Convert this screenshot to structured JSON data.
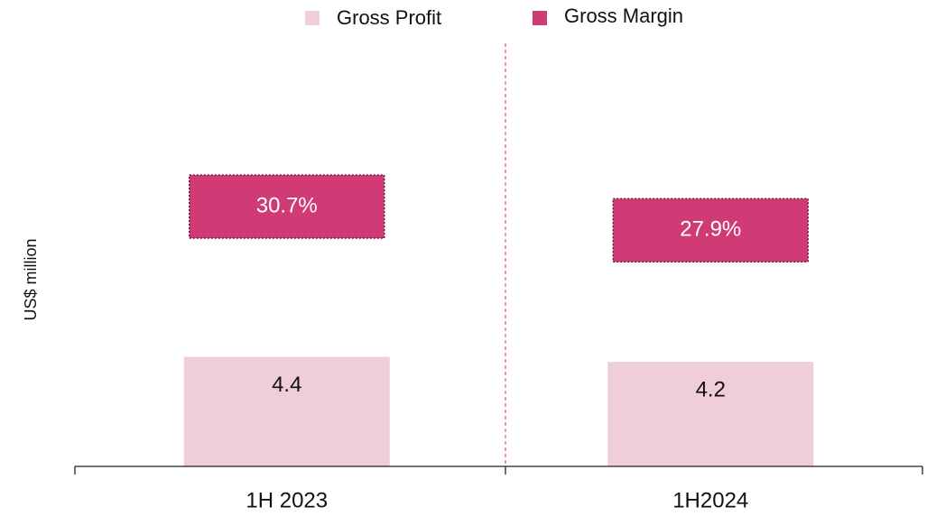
{
  "chart_data": {
    "type": "bar",
    "y_label": "US$ million",
    "categories": [
      "1H 2023",
      "1H2024"
    ],
    "series": [
      {
        "name": "Gross Profit",
        "color": "#f0cddb",
        "values": [
          4.4,
          4.2
        ]
      },
      {
        "name": "Gross Margin",
        "color": "#d03b76",
        "values": [
          30.7,
          27.9
        ],
        "value_labels": [
          "30.7%",
          "27.9%"
        ],
        "axis": "y2"
      }
    ],
    "ylim": [
      0,
      17
    ],
    "y2lim": [
      0,
      50
    ],
    "legend": "top"
  }
}
